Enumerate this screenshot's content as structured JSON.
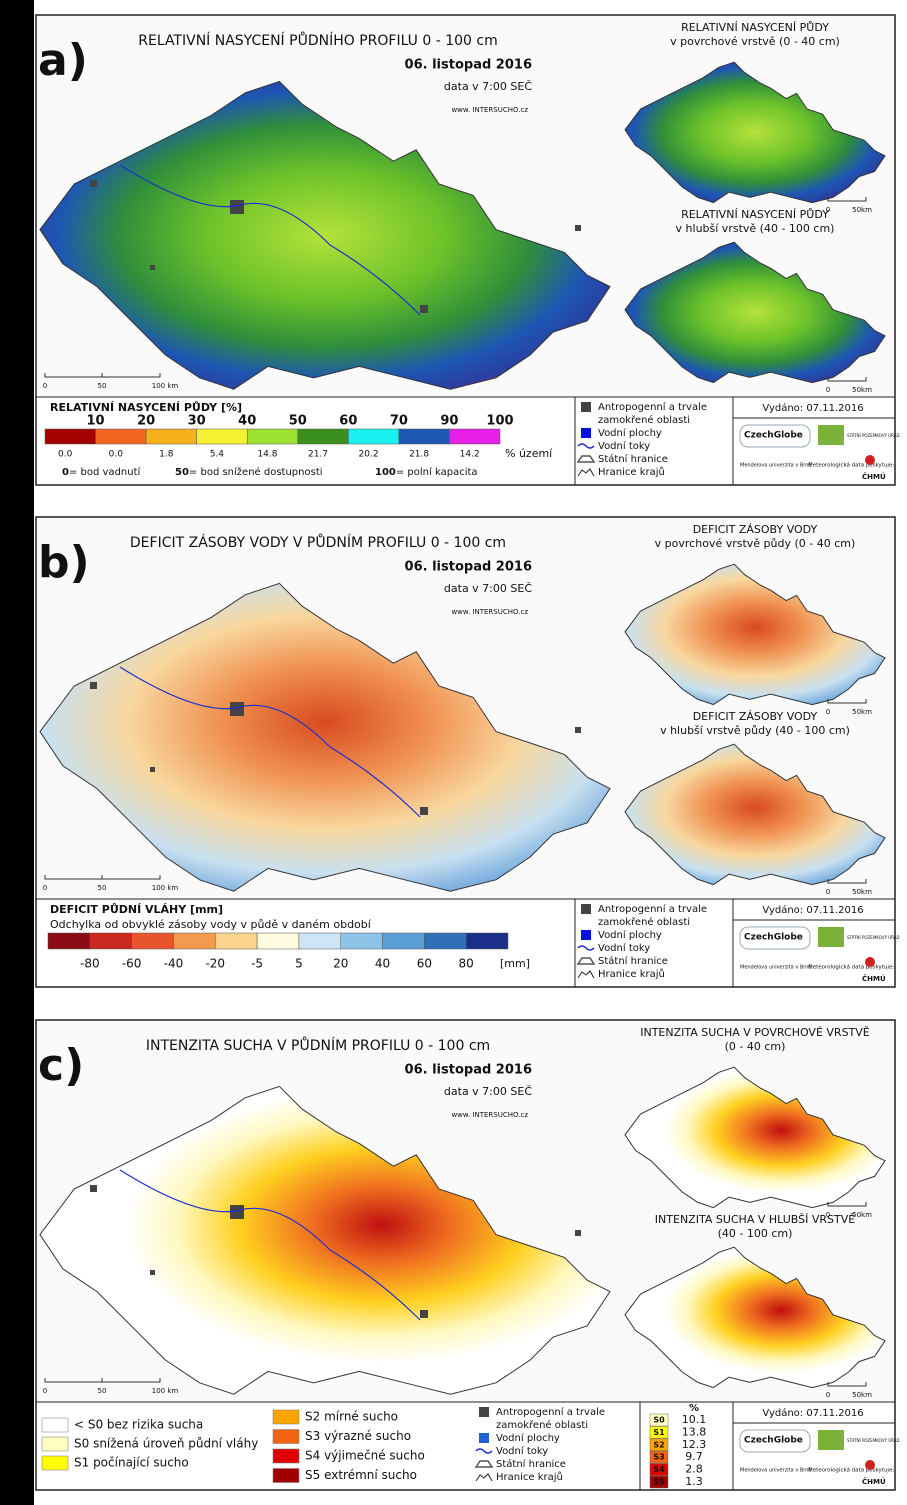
{
  "panels": [
    {
      "letter": "a)",
      "title": "RELATIVNÍ NASYCENÍ PŮDNÍHO PROFILU 0 - 100 cm",
      "date": "06. listopad 2016",
      "time": "data v 7:00 SEČ",
      "website": "www. INTERSUCHO.cz",
      "inset_top": [
        "RELATIVNÍ NASYCENÍ PŮDY",
        "v povrchové vrstvě (0 - 40 cm)"
      ],
      "inset_bottom": [
        "RELATIVNÍ NASYCENÍ PŮDY",
        "v hlubší vrstvě (40 - 100 cm)"
      ],
      "legend": {
        "title": "RELATIVNÍ NASYCENÍ PŮDY [%]",
        "ticks": [
          "10",
          "20",
          "30",
          "40",
          "50",
          "60",
          "70",
          "90",
          "100"
        ],
        "colors": [
          "#a50000",
          "#f26522",
          "#f6b01a",
          "#f5f032",
          "#9be231",
          "#3a8f1e",
          "#19f0f0",
          "#1e56b4",
          "#e61ee6"
        ],
        "shares": [
          "0.0",
          "0.0",
          "1.8",
          "5.4",
          "14.8",
          "21.7",
          "20.2",
          "21.8",
          "14.2"
        ],
        "unit": "% území",
        "notes": [
          {
            "value": "0",
            "text": "= bod vadnutí"
          },
          {
            "value": "50",
            "text": "= bod snížené dostupnosti"
          },
          {
            "value": "100",
            "text": "= polní kapacita"
          }
        ]
      }
    },
    {
      "letter": "b)",
      "title": "DEFICIT ZÁSOBY VODY V PŮDNÍM PROFILU 0 - 100 cm",
      "date": "06. listopad 2016",
      "time": "data v 7:00 SEČ",
      "website": "www. INTERSUCHO.cz",
      "inset_top": [
        "DEFICIT ZÁSOBY VODY",
        "v povrchové vrstvě půdy (0 - 40 cm)"
      ],
      "inset_bottom": [
        "DEFICIT ZÁSOBY VODY",
        "v hlubší vrstvě půdy (40 - 100 cm)"
      ],
      "legend": {
        "title": "DEFICIT PŮDNÍ VLÁHY [mm]",
        "subtitle": "Odchylka od obvyklé zásoby vody v půdě v daném období",
        "ticks": [
          "-80",
          "-60",
          "-40",
          "-20",
          "-5",
          "5",
          "20",
          "40",
          "60",
          "80"
        ],
        "colors": [
          "#8b0a14",
          "#c8281e",
          "#e8552d",
          "#f49a4f",
          "#fbd38a",
          "#fffbe0",
          "#cde6f5",
          "#8ec3e8",
          "#5a9fd6",
          "#2f6fb8",
          "#1b2f8a"
        ],
        "unit": "[mm]"
      }
    },
    {
      "letter": "c)",
      "title": "INTENZITA SUCHA V PŮDNÍM PROFILU 0 - 100 cm",
      "date": "06. listopad 2016",
      "time": "data v 7:00 SEČ",
      "website": "www. INTERSUCHO.cz",
      "inset_top": [
        "INTENZITA SUCHA V POVRCHOVÉ VRSTVĚ",
        "(0 - 40 cm)"
      ],
      "inset_bottom": [
        "INTENZITA SUCHA V HLUBŠÍ VRSTVĚ",
        "(40 - 100 cm)"
      ],
      "legend": {
        "classes": [
          {
            "label": "< S0 bez rizika sucha",
            "color": "#ffffff"
          },
          {
            "label": "S0 snížená úroveň půdní vláhy",
            "color": "#ffffc0"
          },
          {
            "label": "S1 počínající sucho",
            "color": "#ffff00"
          },
          {
            "label": "S2 mírné sucho",
            "color": "#ffa500"
          },
          {
            "label": "S3 výrazné sucho",
            "color": "#f06414"
          },
          {
            "label": "S4 výjimečné sucho",
            "color": "#e00000"
          },
          {
            "label": "S5 extrémní sucho",
            "color": "#a00000"
          }
        ],
        "table": {
          "header": "%",
          "rows": [
            [
              "S0",
              "10.1"
            ],
            [
              "S1",
              "13.8"
            ],
            [
              "S2",
              "12.3"
            ],
            [
              "S3",
              "9.7"
            ],
            [
              "S4",
              "2.8"
            ],
            [
              "S5",
              "1.3"
            ]
          ]
        }
      }
    }
  ],
  "scale_main": [
    "0",
    "50",
    "100 km"
  ],
  "scale_inset": [
    "0",
    "50km"
  ],
  "symbols": [
    [
      "Antropogenní a trvale",
      "zamokřené oblasti"
    ],
    [
      "Vodní plochy"
    ],
    [
      "Vodní toky"
    ],
    [
      "Státní hranice"
    ],
    [
      "Hranice krajů"
    ]
  ],
  "issued": "Vydáno: 07.11.2016",
  "logos": {
    "czechglobe": "CzechGlobe",
    "spu": "STÁTNÍ POZEMKOVÝ ÚŘAD",
    "mendelu": "Mendelova univerzita v Brně",
    "meteo": "Meteorologická data poskytuje:",
    "chmu": "ČHMÚ"
  }
}
